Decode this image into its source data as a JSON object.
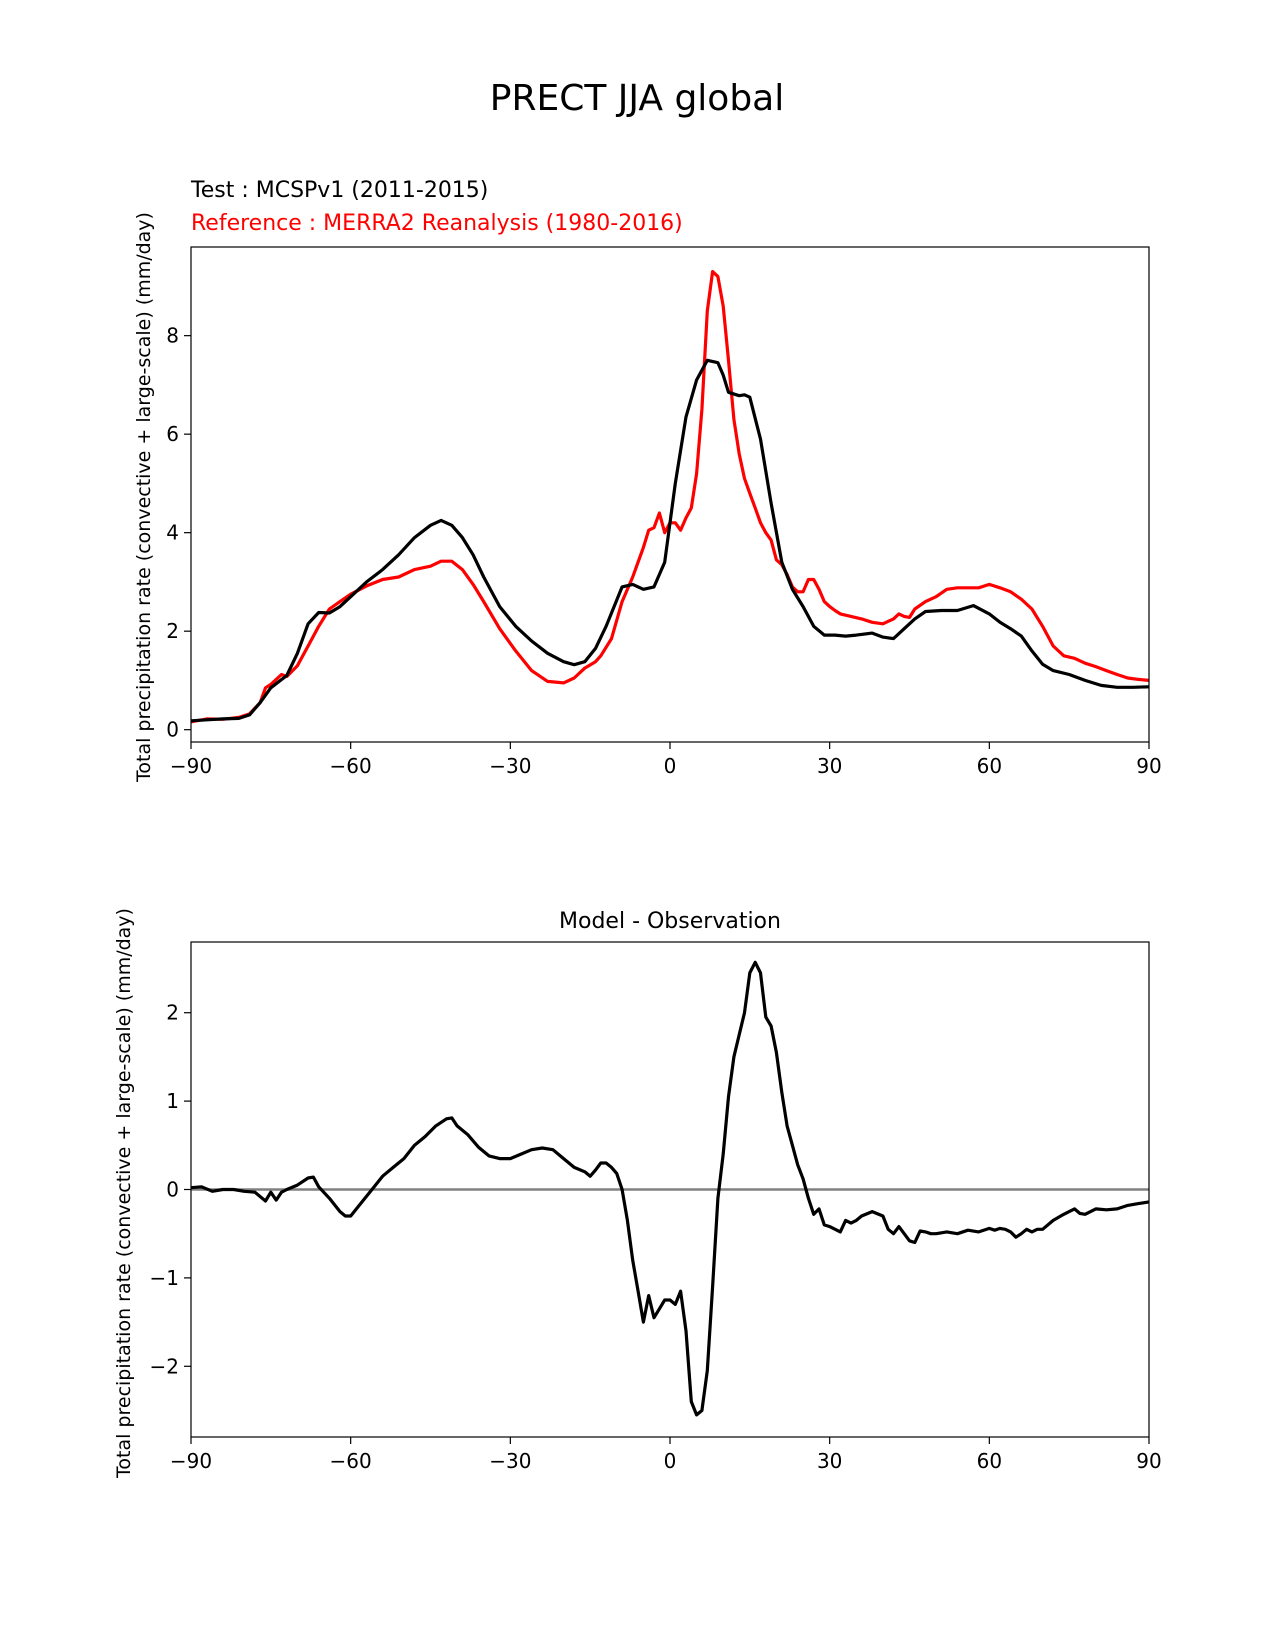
{
  "figure": {
    "title": "PRECT JJA global"
  },
  "colors": {
    "test": "#000000",
    "reference": "#ff0000",
    "zero_line": "#808080"
  },
  "chart_data": [
    {
      "type": "line",
      "title": "",
      "test_label": "Test : MCSPv1 (2011-2015)",
      "reference_label": "Reference : MERRA2 Reanalysis (1980-2016)",
      "xlabel": "",
      "ylabel": "Total precipitation rate (convective + large-scale) (mm/day)",
      "xlim": [
        -90,
        90
      ],
      "ylim": [
        -0.25,
        9.8
      ],
      "xticks": [
        -90,
        -60,
        -30,
        0,
        30,
        60,
        90
      ],
      "xtick_labels": [
        "−90",
        "−60",
        "−30",
        "0",
        "30",
        "60",
        "90"
      ],
      "yticks": [
        0,
        2,
        4,
        6,
        8
      ],
      "ytick_labels": [
        "0",
        "2",
        "4",
        "6",
        "8"
      ],
      "series": [
        {
          "role": "test",
          "x": [
            -90,
            -87,
            -84,
            -81,
            -79,
            -77,
            -75,
            -72,
            -70,
            -68,
            -66,
            -64,
            -62,
            -60,
            -57,
            -54,
            -51,
            -48,
            -45,
            -43,
            -41,
            -39,
            -37,
            -35,
            -32,
            -29,
            -26,
            -23,
            -20,
            -18,
            -16,
            -14,
            -12,
            -9,
            -7,
            -5,
            -3,
            -1,
            1,
            3,
            5,
            7,
            9,
            10,
            11,
            13,
            14,
            15,
            17,
            19,
            21,
            23,
            25,
            27,
            29,
            31,
            33,
            35,
            38,
            40,
            42,
            44,
            46,
            48,
            51,
            54,
            57,
            60,
            62,
            64,
            66,
            68,
            70,
            72,
            75,
            78,
            81,
            84,
            87,
            90
          ],
          "y": [
            0.18,
            0.2,
            0.22,
            0.23,
            0.3,
            0.55,
            0.85,
            1.1,
            1.55,
            2.15,
            2.38,
            2.37,
            2.5,
            2.7,
            3.0,
            3.25,
            3.55,
            3.9,
            4.15,
            4.25,
            4.15,
            3.9,
            3.55,
            3.1,
            2.5,
            2.1,
            1.8,
            1.55,
            1.38,
            1.32,
            1.38,
            1.65,
            2.1,
            2.9,
            2.95,
            2.85,
            2.9,
            3.4,
            5.0,
            6.35,
            7.1,
            7.5,
            7.45,
            7.2,
            6.85,
            6.78,
            6.8,
            6.75,
            5.9,
            4.6,
            3.4,
            2.85,
            2.5,
            2.1,
            1.92,
            1.92,
            1.9,
            1.92,
            1.96,
            1.88,
            1.85,
            2.05,
            2.25,
            2.4,
            2.42,
            2.42,
            2.52,
            2.35,
            2.18,
            2.05,
            1.9,
            1.6,
            1.33,
            1.2,
            1.12,
            1.0,
            0.9,
            0.86,
            0.86,
            0.87
          ]
        },
        {
          "role": "reference",
          "x": [
            -90,
            -87,
            -84,
            -81,
            -79,
            -77,
            -76,
            -75,
            -73,
            -72,
            -70,
            -68,
            -66,
            -64,
            -62,
            -60,
            -57,
            -54,
            -51,
            -48,
            -45,
            -43,
            -41,
            -39,
            -37,
            -35,
            -32,
            -29,
            -26,
            -23,
            -20,
            -18,
            -16,
            -14,
            -13,
            -11,
            -9,
            -7,
            -5,
            -4,
            -3,
            -2,
            -1,
            0,
            1,
            2,
            3,
            4,
            5,
            6,
            7,
            8,
            9,
            10,
            11,
            12,
            13,
            14,
            15,
            16,
            17,
            18,
            19,
            20,
            21,
            22,
            23,
            24,
            25,
            26,
            27,
            28,
            29,
            30,
            31,
            32,
            34,
            36,
            38,
            40,
            42,
            43,
            44,
            45,
            46,
            48,
            50,
            52,
            54,
            56,
            58,
            60,
            62,
            64,
            66,
            68,
            70,
            72,
            74,
            76,
            78,
            80,
            82,
            84,
            86,
            88,
            90
          ],
          "y": [
            0.16,
            0.22,
            0.21,
            0.25,
            0.32,
            0.55,
            0.85,
            0.92,
            1.12,
            1.08,
            1.3,
            1.7,
            2.1,
            2.45,
            2.6,
            2.75,
            2.92,
            3.05,
            3.1,
            3.25,
            3.32,
            3.42,
            3.42,
            3.25,
            2.95,
            2.6,
            2.05,
            1.6,
            1.2,
            0.98,
            0.95,
            1.05,
            1.25,
            1.38,
            1.5,
            1.85,
            2.6,
            3.1,
            3.7,
            4.05,
            4.1,
            4.4,
            4.0,
            4.2,
            4.2,
            4.05,
            4.3,
            4.5,
            5.2,
            6.5,
            8.5,
            9.3,
            9.2,
            8.6,
            7.5,
            6.3,
            5.6,
            5.1,
            4.8,
            4.5,
            4.2,
            4.0,
            3.85,
            3.45,
            3.35,
            3.15,
            2.9,
            2.8,
            2.8,
            3.05,
            3.05,
            2.85,
            2.6,
            2.5,
            2.42,
            2.35,
            2.3,
            2.25,
            2.18,
            2.15,
            2.25,
            2.35,
            2.3,
            2.28,
            2.45,
            2.6,
            2.7,
            2.85,
            2.88,
            2.88,
            2.88,
            2.95,
            2.88,
            2.8,
            2.65,
            2.45,
            2.1,
            1.7,
            1.5,
            1.45,
            1.35,
            1.28,
            1.2,
            1.12,
            1.05,
            1.02,
            1.0
          ]
        }
      ]
    },
    {
      "type": "line",
      "title": "Model - Observation",
      "xlabel": "",
      "ylabel": "Total precipitation rate (convective + large-scale) (mm/day)",
      "xlim": [
        -90,
        90
      ],
      "ylim": [
        -2.8,
        2.8
      ],
      "xticks": [
        -90,
        -60,
        -30,
        0,
        30,
        60,
        90
      ],
      "xtick_labels": [
        "−90",
        "−60",
        "−30",
        "0",
        "30",
        "60",
        "90"
      ],
      "yticks": [
        -2,
        -1,
        0,
        1,
        2
      ],
      "ytick_labels": [
        "−2",
        "−1",
        "0",
        "1",
        "2"
      ],
      "zero_line": 0,
      "series": [
        {
          "role": "difference",
          "x": [
            -90,
            -88,
            -86,
            -84,
            -82,
            -80,
            -78,
            -76,
            -75,
            -74,
            -73,
            -72,
            -70,
            -68,
            -67,
            -66,
            -64,
            -62,
            -61,
            -60,
            -58,
            -56,
            -54,
            -52,
            -50,
            -48,
            -46,
            -44,
            -42,
            -41,
            -40,
            -38,
            -36,
            -34,
            -32,
            -30,
            -28,
            -26,
            -24,
            -22,
            -20,
            -18,
            -16,
            -15,
            -14,
            -13,
            -12,
            -11,
            -10,
            -9,
            -8,
            -7,
            -6,
            -5,
            -4,
            -3,
            -2,
            -1,
            0,
            1,
            2,
            3,
            4,
            5,
            6,
            7,
            8,
            9,
            10,
            11,
            12,
            13,
            14,
            15,
            16,
            17,
            18,
            19,
            20,
            21,
            22,
            23,
            24,
            25,
            26,
            27,
            28,
            29,
            30,
            32,
            33,
            34,
            35,
            36,
            38,
            40,
            41,
            42,
            43,
            44,
            45,
            46,
            47,
            48,
            49,
            50,
            52,
            54,
            56,
            58,
            60,
            61,
            62,
            63,
            64,
            65,
            66,
            67,
            68,
            69,
            70,
            72,
            74,
            75,
            76,
            77,
            78,
            80,
            82,
            84,
            86,
            88,
            90
          ],
          "y": [
            0.02,
            0.03,
            -0.02,
            0.0,
            0.0,
            -0.02,
            -0.03,
            -0.13,
            -0.03,
            -0.12,
            -0.03,
            0.0,
            0.05,
            0.13,
            0.14,
            0.03,
            -0.1,
            -0.25,
            -0.3,
            -0.3,
            -0.15,
            0.0,
            0.15,
            0.25,
            0.35,
            0.5,
            0.6,
            0.72,
            0.8,
            0.81,
            0.72,
            0.62,
            0.48,
            0.38,
            0.35,
            0.35,
            0.4,
            0.45,
            0.47,
            0.45,
            0.35,
            0.25,
            0.2,
            0.15,
            0.22,
            0.3,
            0.3,
            0.25,
            0.18,
            0.0,
            -0.35,
            -0.8,
            -1.15,
            -1.5,
            -1.2,
            -1.45,
            -1.35,
            -1.25,
            -1.25,
            -1.3,
            -1.15,
            -1.6,
            -2.4,
            -2.55,
            -2.5,
            -2.05,
            -1.1,
            -0.1,
            0.4,
            1.05,
            1.5,
            1.75,
            2.0,
            2.45,
            2.57,
            2.45,
            1.95,
            1.85,
            1.55,
            1.1,
            0.72,
            0.5,
            0.28,
            0.12,
            -0.1,
            -0.28,
            -0.22,
            -0.4,
            -0.42,
            -0.48,
            -0.35,
            -0.38,
            -0.35,
            -0.3,
            -0.25,
            -0.3,
            -0.45,
            -0.5,
            -0.42,
            -0.5,
            -0.58,
            -0.6,
            -0.47,
            -0.48,
            -0.5,
            -0.5,
            -0.48,
            -0.5,
            -0.46,
            -0.48,
            -0.44,
            -0.46,
            -0.44,
            -0.45,
            -0.48,
            -0.54,
            -0.5,
            -0.45,
            -0.48,
            -0.45,
            -0.45,
            -0.35,
            -0.28,
            -0.25,
            -0.22,
            -0.27,
            -0.28,
            -0.22,
            -0.23,
            -0.22,
            -0.18,
            -0.16,
            -0.14
          ]
        }
      ]
    }
  ]
}
